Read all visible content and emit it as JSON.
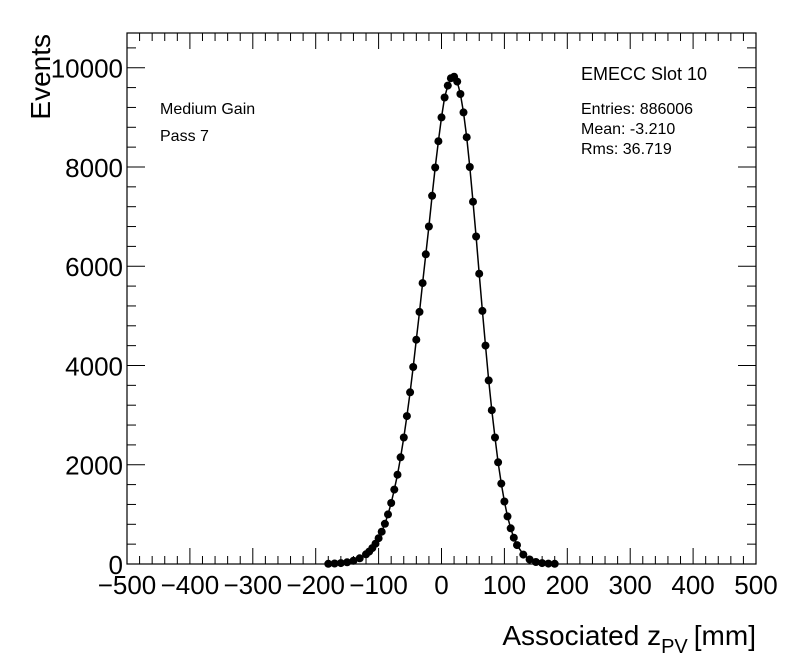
{
  "chart_data": {
    "type": "scatter",
    "xlabel": "Associated z",
    "xlabel_sub": "PV",
    "xlabel_unit": "[mm]",
    "ylabel": "Events",
    "xlim": [
      -500,
      500
    ],
    "ylim": [
      0,
      10700
    ],
    "x_ticks": [
      -500,
      -400,
      -300,
      -200,
      -100,
      0,
      100,
      200,
      300,
      400,
      500
    ],
    "y_ticks": [
      0,
      2000,
      4000,
      6000,
      8000,
      10000
    ],
    "x_tick_labels": [
      "−500",
      "−400",
      "−300",
      "−200",
      "−100",
      "0",
      "100",
      "200",
      "300",
      "400",
      "500"
    ],
    "y_tick_labels": [
      "0",
      "2000",
      "4000",
      "6000",
      "8000",
      "10000"
    ],
    "grid": false,
    "legend": "none",
    "annotations": {
      "gain": "Medium Gain",
      "pass": "Pass 7",
      "slot": "EMECC Slot 10",
      "entries": "Entries: 886006",
      "mean": "Mean: -3.210",
      "rms": "Rms: 36.719"
    },
    "series": [
      {
        "marker": "filled-circle",
        "line": "straight segments",
        "x": [
          -180,
          -170,
          -160,
          -150,
          -140,
          -130,
          -120,
          -115,
          -110,
          -105,
          -100,
          -95,
          -90,
          -85,
          -80,
          -75,
          -70,
          -65,
          -60,
          -55,
          -50,
          -45,
          -40,
          -35,
          -30,
          -25,
          -20,
          -15,
          -10,
          -5,
          0,
          5,
          10,
          15,
          20,
          25,
          30,
          35,
          40,
          45,
          50,
          55,
          60,
          65,
          70,
          75,
          80,
          85,
          90,
          95,
          100,
          105,
          110,
          115,
          120,
          130,
          140,
          150,
          160,
          170,
          180
        ],
        "y": [
          5,
          10,
          18,
          35,
          65,
          115,
          195,
          250,
          320,
          410,
          520,
          650,
          810,
          1000,
          1230,
          1500,
          1800,
          2150,
          2550,
          2980,
          3460,
          3970,
          4520,
          5080,
          5660,
          6240,
          6800,
          7420,
          7990,
          8520,
          9000,
          9400,
          9640,
          9790,
          9820,
          9720,
          9470,
          9100,
          8600,
          8000,
          7300,
          6600,
          5850,
          5100,
          4400,
          3700,
          3100,
          2550,
          2050,
          1620,
          1260,
          960,
          720,
          530,
          380,
          190,
          90,
          40,
          18,
          8,
          4
        ]
      }
    ]
  }
}
